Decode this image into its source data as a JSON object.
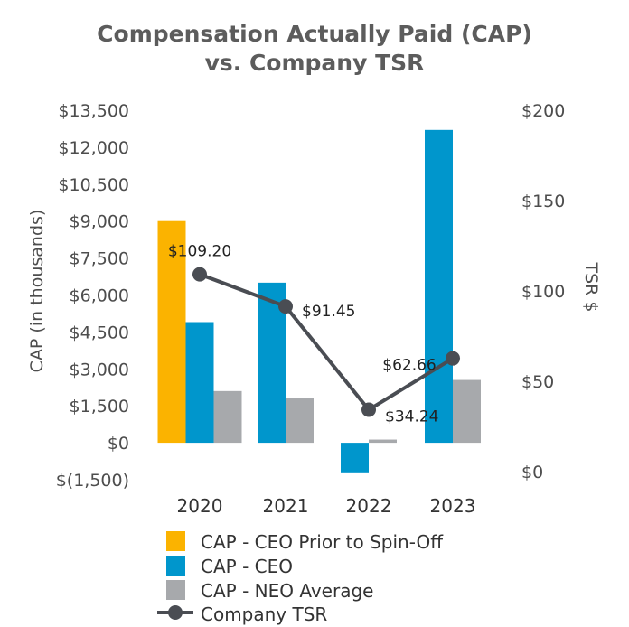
{
  "chart_data": {
    "type": "bar",
    "title": "Compensation Actually Paid (CAP) vs. Company TSR",
    "title_lines": [
      "Compensation Actually Paid (CAP)",
      "vs. Company TSR"
    ],
    "categories": [
      "2020",
      "2021",
      "2022",
      "2023"
    ],
    "ylabel": "CAP (in thousands)",
    "y2label": "TSR $",
    "ylim": [
      -1500,
      13500
    ],
    "y2lim": [
      0,
      200
    ],
    "yticks": [
      -1500,
      0,
      1500,
      3000,
      4500,
      6000,
      7500,
      9000,
      10500,
      12000,
      13500
    ],
    "ytick_labels": [
      "$(1,500)",
      "$0",
      "$1,500",
      "$3,000",
      "$4,500",
      "$6,000",
      "$7,500",
      "$9,000",
      "$10,500",
      "$12,000",
      "$13,500"
    ],
    "y2ticks": [
      0,
      50,
      100,
      150,
      200
    ],
    "y2tick_labels": [
      "$0",
      "$50",
      "$100",
      "$150",
      "$200"
    ],
    "series": [
      {
        "name": "CAP - CEO Prior to Spin-Off",
        "type": "bar",
        "axis": "left",
        "color": "#FBB300",
        "values": [
          9000,
          null,
          null,
          null
        ]
      },
      {
        "name": "CAP - CEO",
        "type": "bar",
        "axis": "left",
        "color": "#0096CC",
        "values": [
          4900,
          6500,
          -1200,
          12700
        ]
      },
      {
        "name": "CAP - NEO Average",
        "type": "bar",
        "axis": "left",
        "color": "#A7A9AC",
        "values": [
          2100,
          1800,
          130,
          2550
        ]
      },
      {
        "name": "Company TSR",
        "type": "line",
        "axis": "right",
        "color": "#4A4D53",
        "values": [
          109.2,
          91.45,
          34.24,
          62.66
        ],
        "labels": [
          "$109.20",
          "$91.45",
          "$34.24",
          "$62.66"
        ]
      }
    ],
    "legend": "bottom"
  }
}
